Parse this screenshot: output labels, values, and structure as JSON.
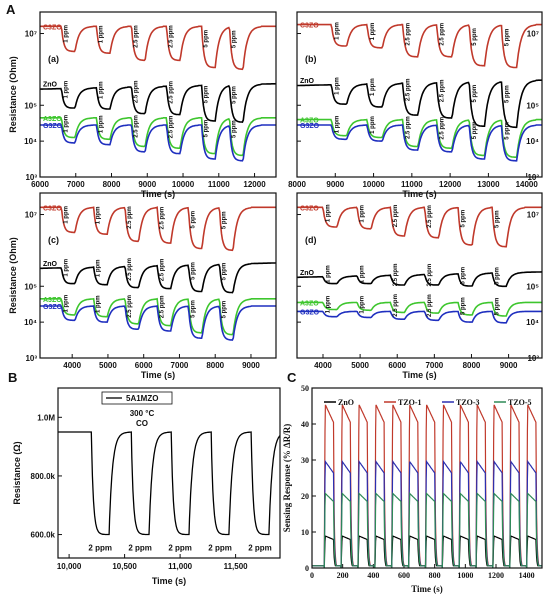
{
  "labels": {
    "A": "A",
    "B": "B",
    "C": "C"
  },
  "colors": {
    "C3ZO": "#c0392b",
    "ZnO": "#000000",
    "A3ZO": "#3ec62e",
    "G3ZO": "#1f2fbf",
    "TZO1": "#c0392b",
    "TZO3": "#2b2fb0",
    "TZO5": "#2e8b57",
    "B_line": "#000000"
  },
  "chart_data": [
    {
      "id": "a",
      "type": "line",
      "panel_label": "(a)",
      "xlabel": "Time (s)",
      "ylabel": "Resistance (Ohm)",
      "xlim": [
        6000,
        12600
      ],
      "xticks": [
        "6000",
        "7000",
        "8000",
        "9000",
        "10000",
        "11000",
        "12000"
      ],
      "ylim_log": [
        3,
        7.6
      ],
      "yticks": [
        "10³",
        "10⁴",
        "10⁵",
        "10⁷"
      ],
      "pulse_starts": [
        6600,
        7580,
        8560,
        9540,
        10520,
        11300
      ],
      "pulse_width": 380,
      "pulse_labels": [
        "1 ppm",
        "1 ppm",
        "2.5 ppm",
        "2.5 ppm",
        "5 ppm",
        "5 ppm"
      ],
      "series": [
        {
          "name": "C3ZO",
          "key": "C3ZO",
          "base": 7.2,
          "dips": [
            0.7,
            0.75,
            0.95,
            0.95,
            1.15,
            1.2
          ]
        },
        {
          "name": "ZnO",
          "key": "ZnO",
          "base": 5.6,
          "dips": [
            0.55,
            0.6,
            0.75,
            0.8,
            1.0,
            1.05
          ]
        },
        {
          "name": "A3ZO",
          "key": "A3ZO",
          "base": 4.65,
          "dips": [
            0.55,
            0.6,
            0.8,
            0.85,
            1.0,
            1.05
          ]
        },
        {
          "name": "G3ZO",
          "key": "G3ZO",
          "base": 4.45,
          "dips": [
            0.5,
            0.55,
            0.75,
            0.8,
            0.95,
            1.0
          ]
        }
      ]
    },
    {
      "id": "b",
      "type": "line",
      "panel_label": "(b)",
      "xlabel": "Time (s)",
      "ylabel": "",
      "xlim": [
        8000,
        14400
      ],
      "xticks": [
        "8000",
        "9000",
        "10000",
        "11000",
        "12000",
        "13000",
        "14000"
      ],
      "ylim_log": [
        3,
        7.6
      ],
      "yticks": [
        "10³",
        "10⁴",
        "10⁵",
        "10⁷"
      ],
      "pulse_starts": [
        8900,
        9830,
        10760,
        11650,
        12500,
        13340
      ],
      "pulse_width": 400,
      "pulse_labels": [
        "1 ppm",
        "1 ppm",
        "2.5 ppm",
        "2.5 ppm",
        "5 ppm",
        "5 ppm"
      ],
      "series": [
        {
          "name": "C3ZO",
          "key": "C3ZO",
          "base": 7.25,
          "dips": [
            0.6,
            0.65,
            0.9,
            0.9,
            1.15,
            1.2
          ]
        },
        {
          "name": "ZnO",
          "key": "ZnO",
          "base": 5.7,
          "dips": [
            0.55,
            0.65,
            0.9,
            1.0,
            1.25,
            1.3
          ]
        },
        {
          "name": "A3ZO",
          "key": "A3ZO",
          "base": 4.6,
          "dips": [
            0.45,
            0.5,
            0.75,
            0.8,
            1.0,
            1.05
          ]
        },
        {
          "name": "G3ZO",
          "key": "G3ZO",
          "base": 4.45,
          "dips": [
            0.4,
            0.45,
            0.7,
            0.75,
            0.95,
            1.0
          ]
        }
      ]
    },
    {
      "id": "c",
      "type": "line",
      "panel_label": "(c)",
      "xlabel": "Time (s)",
      "ylabel": "Resistance (Ohm)",
      "xlim": [
        3100,
        9700
      ],
      "xticks": [
        "4000",
        "5000",
        "6000",
        "7000",
        "8000",
        "9000"
      ],
      "ylim_log": [
        3,
        7.6
      ],
      "yticks": [
        "10³",
        "10⁴",
        "10⁵",
        "10⁷"
      ],
      "pulse_starts": [
        3700,
        4600,
        5480,
        6380,
        7250,
        8120
      ],
      "pulse_width": 380,
      "pulse_labels": [
        "1 ppm",
        "1 ppm",
        "2.5 ppm",
        "2.5 ppm",
        "5 ppm",
        "5 ppm"
      ],
      "series": [
        {
          "name": "C3ZO",
          "key": "C3ZO",
          "base": 7.2,
          "dips": [
            0.7,
            0.75,
            0.95,
            1.0,
            1.15,
            1.2
          ]
        },
        {
          "name": "ZnO",
          "key": "ZnO",
          "base": 5.65,
          "dips": [
            0.45,
            0.5,
            0.6,
            0.65,
            0.75,
            0.8
          ]
        },
        {
          "name": "A3ZO",
          "key": "A3ZO",
          "base": 4.65,
          "dips": [
            0.45,
            0.5,
            0.7,
            0.75,
            0.95,
            1.0
          ]
        },
        {
          "name": "G3ZO",
          "key": "G3ZO",
          "base": 4.45,
          "dips": [
            0.4,
            0.45,
            0.65,
            0.7,
            0.9,
            0.95
          ]
        }
      ]
    },
    {
      "id": "d",
      "type": "line",
      "panel_label": "(d)",
      "xlabel": "Time (s)",
      "ylabel": "",
      "xlim": [
        3300,
        9900
      ],
      "xticks": [
        "4000",
        "5000",
        "6000",
        "7000",
        "8000",
        "9000"
      ],
      "ylim_log": [
        3,
        7.6
      ],
      "yticks": [
        "10³",
        "10⁴",
        "10⁵",
        "10⁷"
      ],
      "pulse_starts": [
        4000,
        4920,
        5820,
        6740,
        7640,
        8560
      ],
      "pulse_width": 380,
      "pulse_labels": [
        "1 ppm",
        "1 ppm",
        "2.5 ppm",
        "2.5 ppm",
        "5 ppm",
        "5 ppm"
      ],
      "series": [
        {
          "name": "C3ZO",
          "key": "C3ZO",
          "base": 7.2,
          "dips": [
            0.55,
            0.6,
            0.8,
            0.85,
            1.05,
            1.1
          ]
        },
        {
          "name": "ZnO",
          "key": "ZnO",
          "base": 5.4,
          "dips": [
            0.2,
            0.22,
            0.28,
            0.3,
            0.35,
            0.38
          ]
        },
        {
          "name": "A3ZO",
          "key": "A3ZO",
          "base": 4.55,
          "dips": [
            0.2,
            0.22,
            0.28,
            0.3,
            0.35,
            0.38
          ]
        },
        {
          "name": "G3ZO",
          "key": "G3ZO",
          "base": 4.3,
          "dips": [
            0.15,
            0.17,
            0.22,
            0.25,
            0.3,
            0.32
          ]
        }
      ]
    },
    {
      "id": "B",
      "type": "line",
      "xlabel": "Time (s)",
      "ylabel": "Resistance (Ω)",
      "xlim": [
        9900,
        11900
      ],
      "xticks": [
        "10,000",
        "10,500",
        "11,000",
        "11,500"
      ],
      "ylim": [
        520,
        1100
      ],
      "yticks": [
        "600.0k",
        "800.0k",
        "1.0M"
      ],
      "legend": "5A1MZO",
      "annotation_top": "300 °C",
      "annotation_gas": "CO",
      "pulse_starts": [
        10200,
        10560,
        10920,
        11280,
        11640
      ],
      "pulse_width": 160,
      "pulse_labels": [
        "2 ppm",
        "2 ppm",
        "2 ppm",
        "2 ppm",
        "2 ppm"
      ],
      "high": 950,
      "low": 600
    },
    {
      "id": "C",
      "type": "line",
      "xlabel": "Time (s)",
      "ylabel": "Sensing Response (% ΔR/R)",
      "xlim": [
        0,
        1500
      ],
      "xticks": [
        "0",
        "200",
        "400",
        "600",
        "800",
        "1000",
        "1200",
        "1400"
      ],
      "ylim": [
        0,
        50
      ],
      "yticks": [
        "0",
        "10",
        "20",
        "30",
        "40",
        "50"
      ],
      "pulse_starts": [
        80,
        190,
        300,
        410,
        520,
        630,
        740,
        850,
        960,
        1070,
        1180,
        1290,
        1400
      ],
      "pulse_width": 60,
      "series": [
        {
          "name": "ZnO",
          "key": "ZnO",
          "peak": 9
        },
        {
          "name": "TZO-1",
          "key": "TZO1",
          "peak": 46
        },
        {
          "name": "TZO-3",
          "key": "TZO3",
          "peak": 30
        },
        {
          "name": "TZO-5",
          "key": "TZO5",
          "peak": 21
        }
      ]
    }
  ]
}
